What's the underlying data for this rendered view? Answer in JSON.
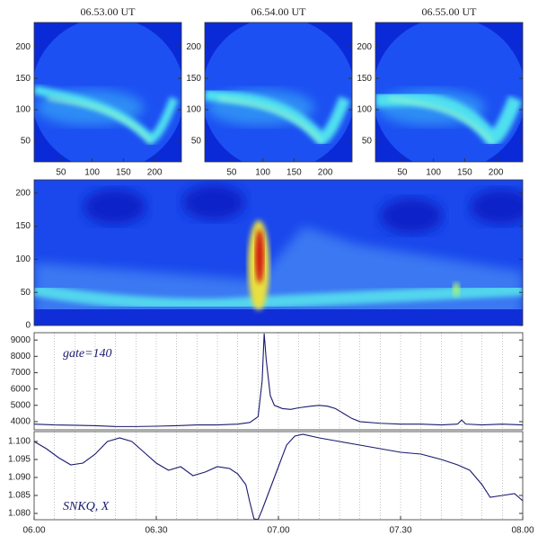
{
  "chart_data": [
    {
      "type": "image",
      "title": "06.53.00 UT",
      "xlim": [
        7,
        243
      ],
      "ylim": [
        17,
        239
      ],
      "xticks": [
        50,
        100,
        150,
        200
      ],
      "yticks": [
        50,
        100,
        150,
        200
      ]
    },
    {
      "type": "image",
      "title": "06.54.00 UT",
      "xlim": [
        7,
        243
      ],
      "ylim": [
        17,
        239
      ],
      "xticks": [
        50,
        100,
        150,
        200
      ],
      "yticks": [
        50,
        100,
        150,
        200
      ]
    },
    {
      "type": "image",
      "title": "06.55.00 UT",
      "xlim": [
        7,
        243
      ],
      "ylim": [
        17,
        239
      ],
      "xticks": [
        50,
        100,
        150,
        200
      ],
      "yticks": [
        50,
        100,
        150,
        200
      ]
    },
    {
      "type": "keogram",
      "xlim": [
        0,
        120
      ],
      "ylim": [
        0,
        220
      ],
      "yticks": [
        0,
        50,
        100,
        150,
        200
      ]
    },
    {
      "type": "line",
      "annotation": "gate=140",
      "color": "#1a1a6e",
      "xlim": [
        0,
        120
      ],
      "ylim": [
        3500,
        9450
      ],
      "yticks": [
        4000,
        5000,
        6000,
        7000,
        8000,
        9000
      ],
      "grid": true,
      "xminorticks": [
        0,
        5,
        10,
        15,
        20,
        25,
        30,
        35,
        40,
        45,
        50,
        55,
        60,
        65,
        70,
        75,
        80,
        85,
        90,
        95,
        100,
        105,
        110,
        115,
        120
      ],
      "x": [
        0,
        5,
        10,
        15,
        20,
        25,
        30,
        35,
        40,
        45,
        50,
        53,
        55,
        56,
        56.5,
        57,
        58,
        59,
        61,
        63,
        65,
        68,
        70,
        72,
        74,
        76,
        78,
        80,
        85,
        90,
        95,
        100,
        104,
        105,
        106,
        110,
        115,
        120
      ],
      "values": [
        3850,
        3800,
        3780,
        3750,
        3700,
        3700,
        3720,
        3750,
        3800,
        3800,
        3850,
        3950,
        4300,
        6500,
        9400,
        7800,
        5600,
        5000,
        4800,
        4750,
        4850,
        4950,
        5000,
        4950,
        4800,
        4500,
        4200,
        4000,
        3900,
        3850,
        3850,
        3800,
        3850,
        4100,
        3850,
        3800,
        3850,
        3800
      ]
    },
    {
      "type": "line",
      "annotation": "SNKQ, X",
      "color": "#1a1a6e",
      "xlim": [
        0,
        120
      ],
      "ylim": [
        1.07825,
        1.10275
      ],
      "yticks": [
        {
          "value": 1.08,
          "label": "1.080"
        },
        1.085,
        {
          "value": 1.09,
          "label": "1.090"
        },
        1.095,
        {
          "value": 1.1,
          "label": "1.100"
        }
      ],
      "grid": true,
      "xminorticks": [
        0,
        5,
        10,
        15,
        20,
        25,
        30,
        35,
        40,
        45,
        50,
        55,
        60,
        65,
        70,
        75,
        80,
        85,
        90,
        95,
        100,
        105,
        110,
        115,
        120
      ],
      "xticks": [
        {
          "value": 0,
          "label": "06.00"
        },
        {
          "value": 30,
          "label": "06.30"
        },
        {
          "value": 60,
          "label": "07.00"
        },
        {
          "value": 90,
          "label": "07.30"
        },
        {
          "value": 120,
          "label": "08.00"
        }
      ],
      "x": [
        0,
        3,
        6,
        9,
        12,
        15,
        18,
        21,
        24,
        27,
        30,
        33,
        36,
        39,
        42,
        45,
        48,
        50,
        52,
        53,
        54,
        55,
        56,
        58,
        60,
        62,
        64,
        66,
        70,
        75,
        80,
        85,
        90,
        95,
        100,
        104,
        107,
        110,
        112,
        115,
        118,
        120
      ],
      "values": [
        1.1,
        1.098,
        1.0955,
        1.0935,
        1.094,
        1.0965,
        1.1,
        1.101,
        1.1,
        1.097,
        1.094,
        1.092,
        1.093,
        1.0905,
        1.0915,
        1.093,
        1.0925,
        1.091,
        1.088,
        1.083,
        1.0785,
        1.0783,
        1.081,
        1.087,
        1.093,
        1.099,
        1.1015,
        1.102,
        1.101,
        1.1,
        1.099,
        1.098,
        1.097,
        1.0965,
        1.095,
        1.0935,
        1.092,
        1.088,
        1.0845,
        1.085,
        1.0855,
        1.0835
      ]
    }
  ]
}
